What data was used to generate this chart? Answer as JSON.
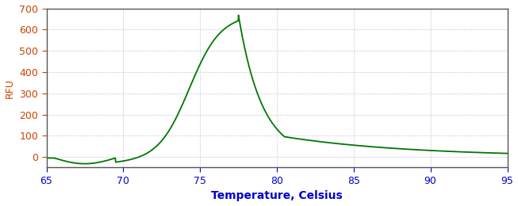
{
  "xlabel": "Temperature, Celsius",
  "ylabel": "RFU",
  "xlim": [
    65,
    95
  ],
  "ylim": [
    -50,
    700
  ],
  "xticks": [
    65,
    70,
    75,
    80,
    85,
    90,
    95
  ],
  "yticks": [
    0,
    100,
    200,
    300,
    400,
    500,
    600,
    700
  ],
  "line_color": "#007700",
  "line_width": 1.3,
  "background_color": "#ffffff",
  "plot_bg_color": "#ffffff",
  "grid_color": "#aaaacc",
  "grid_style": ":",
  "xlabel_fontsize": 10,
  "ylabel_fontsize": 9,
  "tick_fontsize": 9,
  "ylabel_color": "#cc4400",
  "ytick_color": "#cc4400",
  "xlabel_color": "#0000cc",
  "xtick_color": "#0000cc",
  "spine_color": "#555555"
}
